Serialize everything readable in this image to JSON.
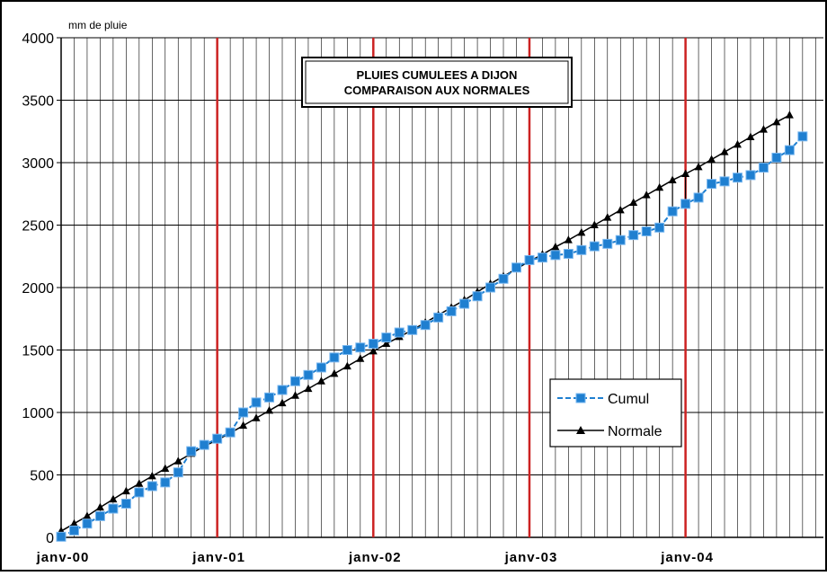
{
  "chart_data": {
    "type": "line",
    "title_lines": [
      "PLUIES CUMULEES A DIJON",
      "COMPARAISON AUX NORMALES"
    ],
    "ylabel": "mm de pluie",
    "xlabel": "",
    "ylim": [
      0,
      4000
    ],
    "y_ticks": [
      0,
      500,
      1000,
      1500,
      2000,
      2500,
      3000,
      3500,
      4000
    ],
    "x_tick_labels": [
      "janv-00",
      "janv-01",
      "janv-02",
      "janv-03",
      "janv-04"
    ],
    "x_range_months": [
      0,
      58.6
    ],
    "grid": true,
    "legend_position": "right",
    "series": [
      {
        "name": "Cumul",
        "color": "#1f7fd0",
        "marker": "square",
        "values": [
          5,
          55,
          110,
          170,
          230,
          270,
          360,
          410,
          440,
          520,
          690,
          740,
          790,
          840,
          1000,
          1080,
          1120,
          1180,
          1250,
          1300,
          1360,
          1440,
          1500,
          1520,
          1550,
          1600,
          1640,
          1660,
          1700,
          1760,
          1810,
          1870,
          1930,
          2000,
          2070,
          2160,
          2220,
          2240,
          2260,
          2270,
          2300,
          2330,
          2350,
          2380,
          2420,
          2450,
          2480,
          2610,
          2670,
          2720,
          2830,
          2850,
          2880,
          2900,
          2960,
          3040,
          3100,
          3210
        ]
      },
      {
        "name": "Normale",
        "color": "#000000",
        "marker": "triangle",
        "values": [
          50,
          110,
          170,
          240,
          305,
          370,
          430,
          490,
          550,
          610,
          670,
          730,
          780,
          835,
          895,
          955,
          1015,
          1075,
          1135,
          1190,
          1250,
          1310,
          1370,
          1430,
          1490,
          1550,
          1605,
          1660,
          1720,
          1780,
          1840,
          1900,
          1965,
          2030,
          2090,
          2150,
          2210,
          2265,
          2325,
          2380,
          2440,
          2500,
          2560,
          2620,
          2680,
          2740,
          2800,
          2860,
          2910,
          2965,
          3025,
          3085,
          3145,
          3205,
          3265,
          3325,
          3380
        ]
      }
    ]
  },
  "colors": {
    "year_line": "#cc2222",
    "grid": "#000000",
    "background": "#ffffff"
  }
}
